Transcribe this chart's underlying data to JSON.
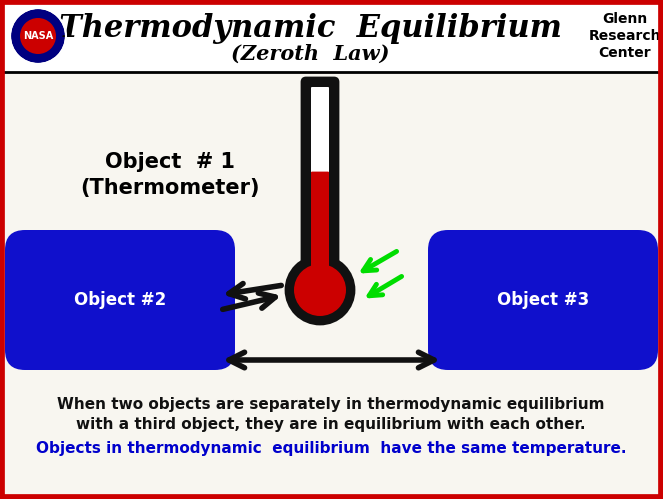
{
  "title_main": "Thermodynamic  Equilibrium",
  "title_sub": "(Zeroth  Law)",
  "title_right": "Glenn\nResearch\nCenter",
  "bg_color": "#d8d8d8",
  "header_bg": "#ffffff",
  "border_color": "#cc0000",
  "obj1_label": "Object  # 1\n(Thermometer)",
  "obj2_label": "Object #2",
  "obj3_label": "Object #3",
  "obj_color": "#1010cc",
  "thermometer_red": "#cc0000",
  "thermometer_black": "#111111",
  "arrow_black": "#111111",
  "arrow_green": "#00dd00",
  "text1": "When two objects are separately in thermodynamic equilibrium",
  "text2": "with a third object, they are in equilibrium with each other.",
  "text3": "Objects in thermodynamic  equilibrium  have the same temperature.",
  "text_color_black": "#111111",
  "text_color_blue": "#0000cc",
  "fig_w": 6.63,
  "fig_h": 4.99,
  "dpi": 100
}
